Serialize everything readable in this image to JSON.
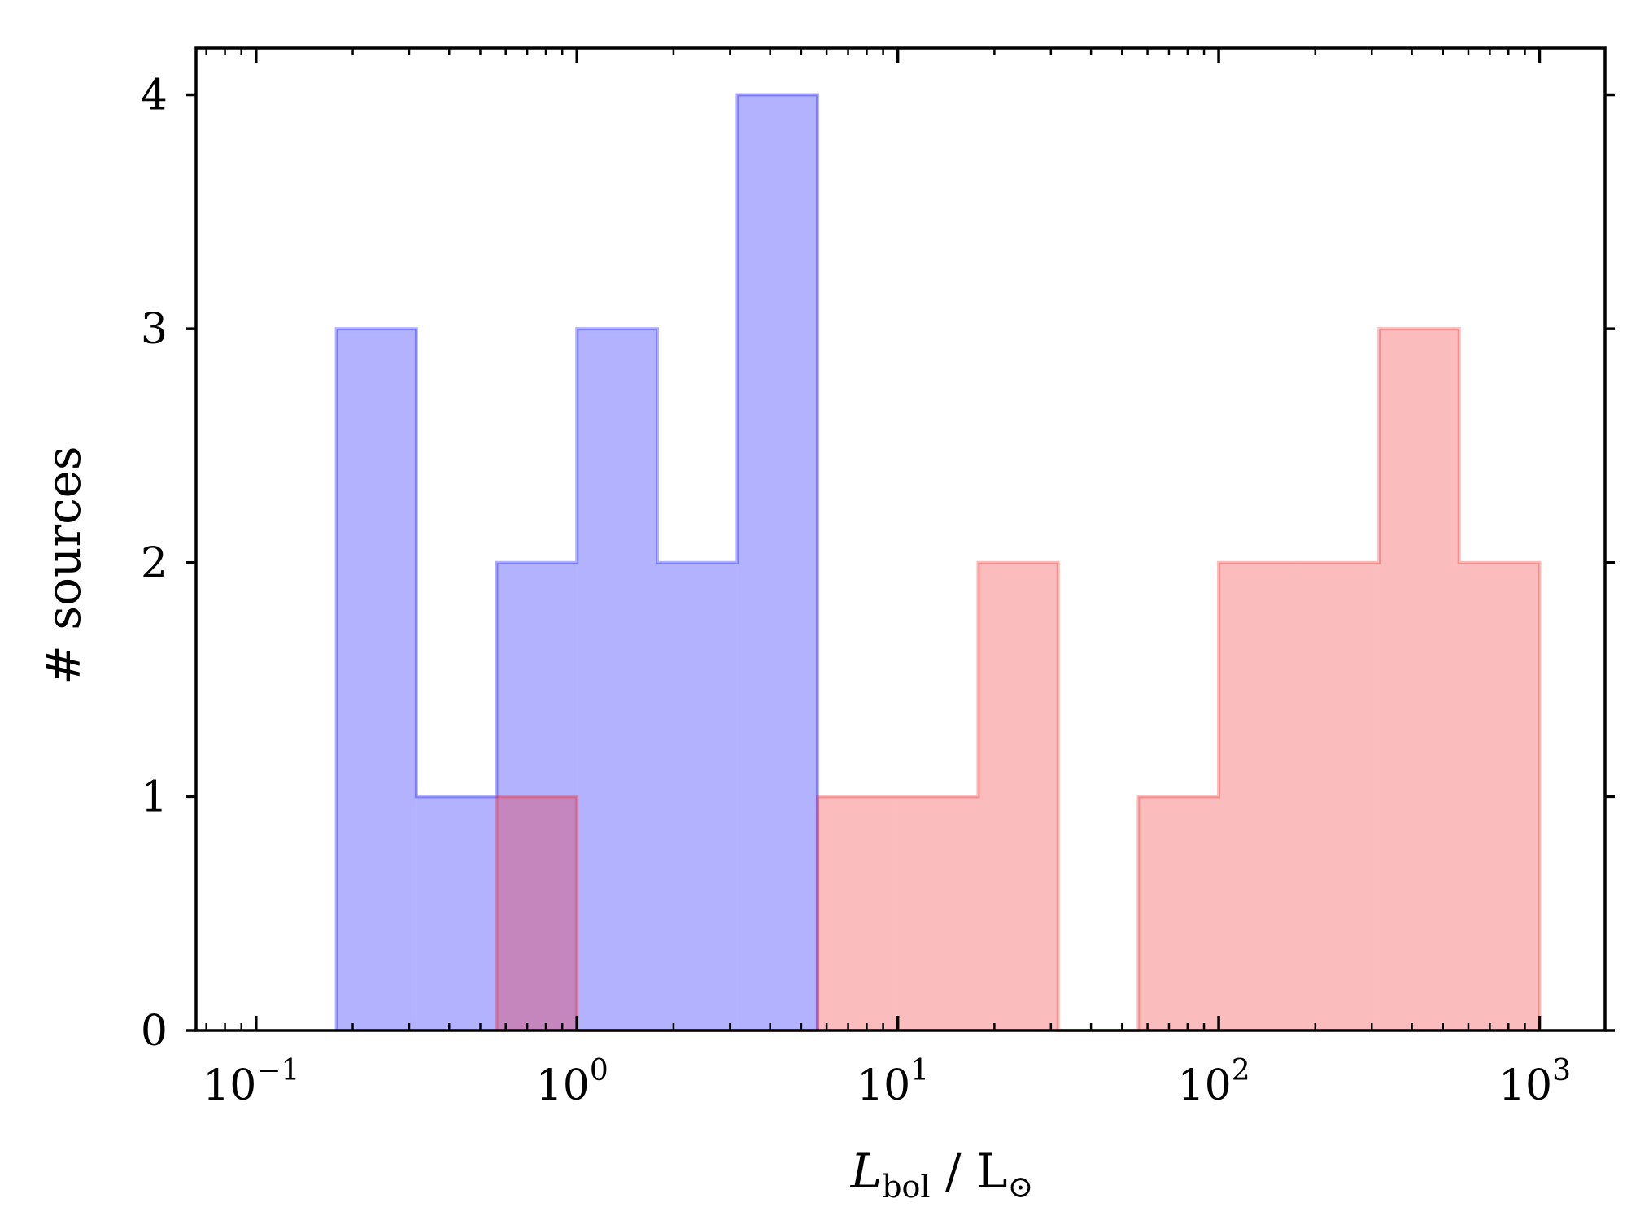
{
  "chart_data": {
    "type": "histogram",
    "x_scale": "log",
    "xlim": [
      0.065,
      1600.0
    ],
    "ylim": [
      0,
      4.2
    ],
    "xlabel": {
      "main": "L",
      "sub": "bol",
      "sep": " / L",
      "sun": "⊙"
    },
    "ylabel": "# sources",
    "y_ticks": [
      {
        "value": 0,
        "label": "0"
      },
      {
        "value": 1,
        "label": "1"
      },
      {
        "value": 2,
        "label": "2"
      },
      {
        "value": 3,
        "label": "3"
      },
      {
        "value": 4,
        "label": "4"
      }
    ],
    "x_ticks": [
      {
        "value": 0.1,
        "base": "10",
        "exp": "−1"
      },
      {
        "value": 1,
        "base": "10",
        "exp": "0"
      },
      {
        "value": 10,
        "base": "10",
        "exp": "1"
      },
      {
        "value": 100,
        "base": "10",
        "exp": "2"
      },
      {
        "value": 1000,
        "base": "10",
        "exp": "3"
      }
    ],
    "series": [
      {
        "color": "#0000ff",
        "bin_edges": [
          0.178,
          0.316,
          0.562,
          1.0,
          1.78,
          3.16,
          5.62
        ],
        "counts": [
          3,
          1,
          2,
          3,
          2,
          4
        ]
      },
      {
        "color": "#f02020",
        "bin_edges": [
          0.562,
          1.0,
          1.78,
          3.16,
          5.62,
          10.0,
          17.8,
          31.6,
          56.2,
          100,
          178,
          316,
          562,
          1000
        ],
        "counts": [
          1,
          0,
          0,
          0,
          1,
          1,
          2,
          0,
          1,
          2,
          2,
          3,
          2
        ]
      }
    ]
  }
}
